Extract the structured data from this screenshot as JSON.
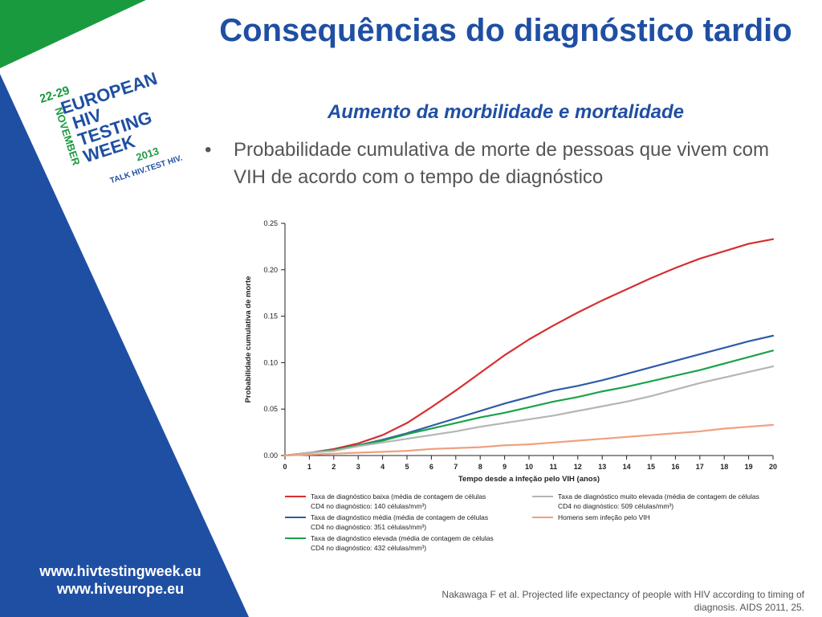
{
  "slide": {
    "title": "Consequências do diagnóstico tardio",
    "subtitle": "Aumento da morbilidade e mortalidade",
    "bullet_symbol": "•",
    "bullet_text": "Probabilidade cumulativa de morte de pessoas que vivem com VIH de acordo com o tempo de diagnóstico",
    "urls": [
      "www.hivtestingweek.eu",
      "www.hiveurope.eu"
    ],
    "reference": "Nakawaga F et al. Projected life expectancy of people with HIV according to timing of diagnosis. AIDS 2011, 25."
  },
  "logo": {
    "dates": "22-29",
    "month": "NOVEMBER",
    "year": "2013",
    "line1": "EUROPEAN",
    "line2": "HIV",
    "line3": "TESTING",
    "line4": "WEEK",
    "tagline": "TALK HIV.TEST HIV."
  },
  "colors": {
    "brand_blue": "#1f4fa3",
    "brand_green": "#1a9a3f",
    "series_low": "#d62f2f",
    "series_medium": "#2e5ca8",
    "series_high": "#1aa34a",
    "series_very_high": "#b5b5b5",
    "series_uninfected": "#f0a080"
  },
  "chart_data": {
    "type": "line",
    "xlabel": "Tempo desde a infeção pelo VIH (anos)",
    "ylabel": "Probabilidade cumulativa de morte",
    "xlim": [
      0,
      20
    ],
    "ylim": [
      0,
      0.25
    ],
    "xticks": [
      "0",
      "1",
      "2",
      "3",
      "4",
      "5",
      "6",
      "7",
      "8",
      "9",
      "10",
      "11",
      "12",
      "13",
      "14",
      "15",
      "16",
      "17",
      "18",
      "19",
      "20"
    ],
    "yticks": [
      "0.00",
      "0.05",
      "0.10",
      "0.15",
      "0.20",
      "0.25"
    ],
    "grid": false,
    "x": [
      0,
      1,
      2,
      3,
      4,
      5,
      6,
      7,
      8,
      9,
      10,
      11,
      12,
      13,
      14,
      15,
      16,
      17,
      18,
      19,
      20
    ],
    "series": [
      {
        "name": "Taxa de diagnóstico baixa (média de contagem de células CD4 no diagnóstico: 140 células/mm³)",
        "color": "#d62f2f",
        "values": [
          0,
          0.003,
          0.007,
          0.013,
          0.022,
          0.035,
          0.052,
          0.07,
          0.089,
          0.108,
          0.125,
          0.14,
          0.154,
          0.167,
          0.179,
          0.191,
          0.202,
          0.212,
          0.22,
          0.228,
          0.233
        ]
      },
      {
        "name": "Taxa de diagnóstico média (média de contagem de células CD4 no diagnóstico: 351 células/mm³)",
        "color": "#2e5ca8",
        "values": [
          0,
          0.003,
          0.006,
          0.011,
          0.017,
          0.024,
          0.032,
          0.04,
          0.048,
          0.056,
          0.063,
          0.07,
          0.075,
          0.081,
          0.088,
          0.095,
          0.102,
          0.109,
          0.116,
          0.123,
          0.129
        ]
      },
      {
        "name": "Taxa de diagnóstico elevada (média de contagem de células CD4 no diagnóstico: 432 células/mm³)",
        "color": "#1aa34a",
        "values": [
          0,
          0.003,
          0.006,
          0.011,
          0.016,
          0.023,
          0.029,
          0.035,
          0.041,
          0.046,
          0.052,
          0.058,
          0.063,
          0.069,
          0.074,
          0.08,
          0.086,
          0.092,
          0.099,
          0.106,
          0.113
        ]
      },
      {
        "name": "Taxa de diagnóstico muito elevada (média de contagem de células CD4 no diagnóstico: 509 células/mm³)",
        "color": "#b5b5b5",
        "values": [
          0,
          0.003,
          0.005,
          0.01,
          0.014,
          0.018,
          0.022,
          0.026,
          0.031,
          0.035,
          0.039,
          0.043,
          0.048,
          0.053,
          0.058,
          0.064,
          0.071,
          0.078,
          0.084,
          0.09,
          0.096
        ]
      },
      {
        "name": "Homens sem infeção pelo VIH",
        "color": "#f0a080",
        "values": [
          0,
          0.001,
          0.002,
          0.003,
          0.004,
          0.005,
          0.007,
          0.008,
          0.009,
          0.011,
          0.012,
          0.014,
          0.016,
          0.018,
          0.02,
          0.022,
          0.024,
          0.026,
          0.029,
          0.031,
          0.033
        ]
      }
    ],
    "legend": [
      {
        "line1": "Taxa de diagnóstico baixa (média de contagem de células",
        "line2": "CD4 no diagnóstico: 140 células/mm³)",
        "color": "#d62f2f"
      },
      {
        "line1": "Taxa de diagnóstico média (média de contagem de células",
        "line2": "CD4 no diagnóstico: 351 células/mm³)",
        "color": "#2e5ca8"
      },
      {
        "line1": "Taxa de diagnóstico elevada (média de contagem de células",
        "line2": "CD4 no diagnóstico: 432 células/mm³)",
        "color": "#1aa34a"
      },
      {
        "line1": "Taxa de diagnóstico muito elevada (média de contagem de células",
        "line2": "CD4 no diagnóstico: 509 células/mm³)",
        "color": "#b5b5b5"
      },
      {
        "line1": "Homens sem infeção pelo VIH",
        "line2": "",
        "color": "#f0a080"
      }
    ],
    "legend_position": "bottom"
  }
}
